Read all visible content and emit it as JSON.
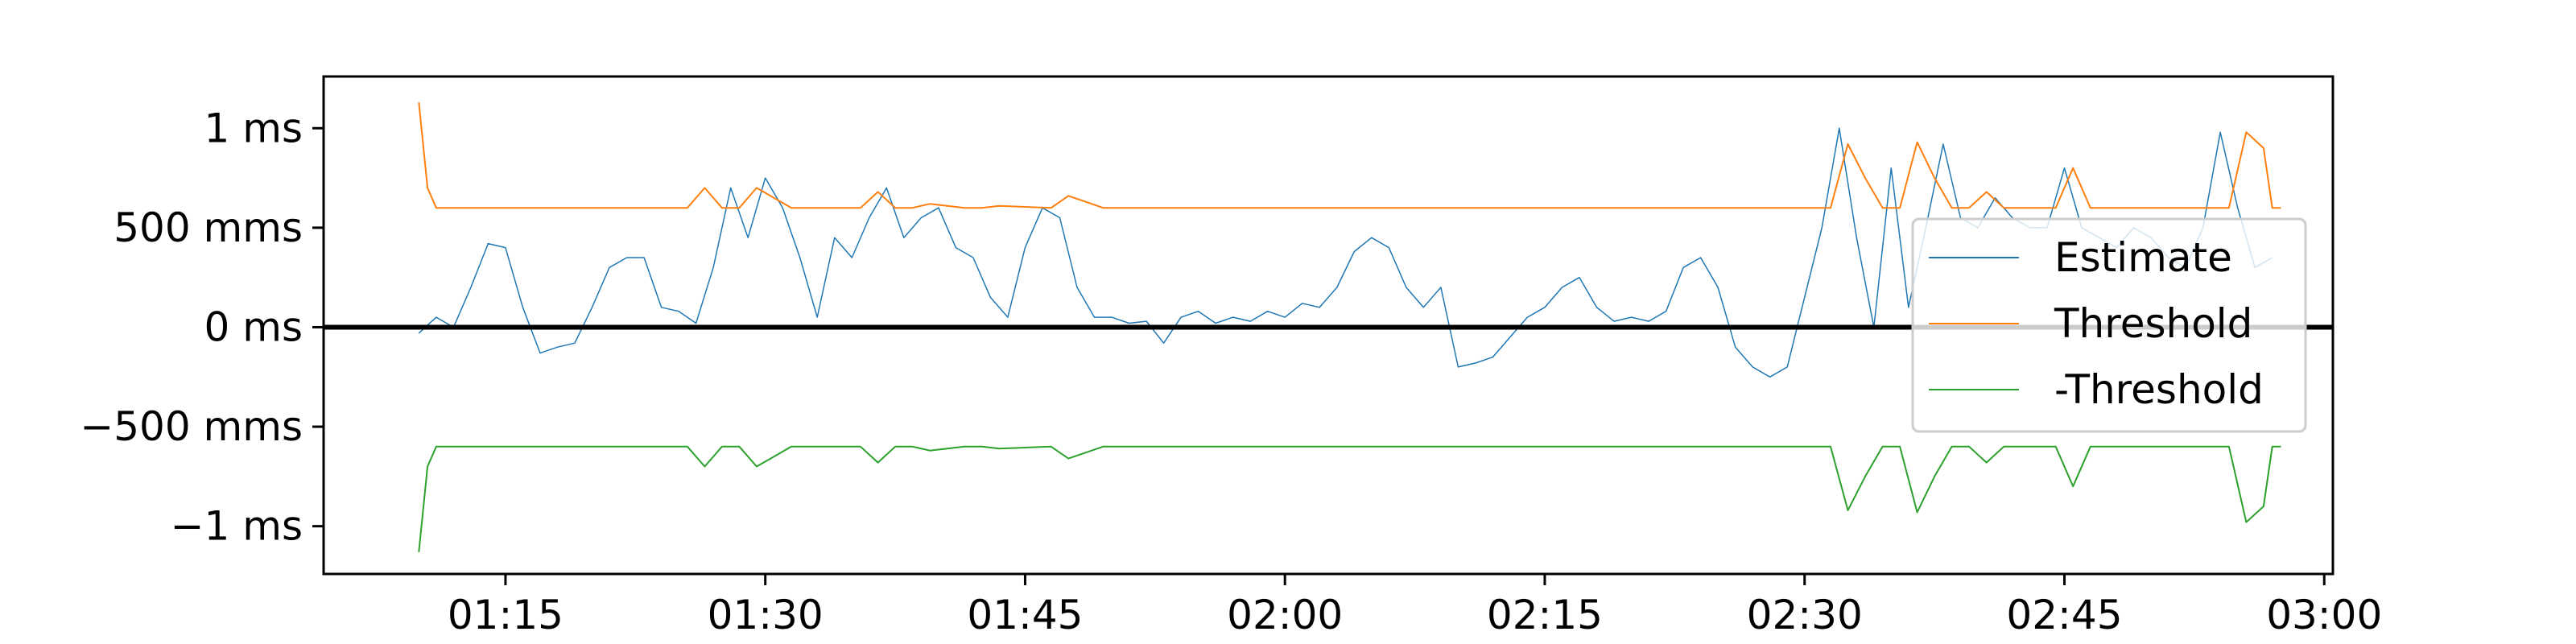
{
  "chart_data": {
    "type": "line",
    "title": "",
    "xlabel": "",
    "ylabel": "",
    "xlim": [
      "01:04:30",
      "03:00:30"
    ],
    "ylim": [
      -1.24,
      1.26
    ],
    "y_unit": "ms",
    "grid": false,
    "legend_position": "right",
    "zero_line": true,
    "x_ticks": [
      {
        "value": "01:15",
        "label": "01:15"
      },
      {
        "value": "01:30",
        "label": "01:30"
      },
      {
        "value": "01:45",
        "label": "01:45"
      },
      {
        "value": "02:00",
        "label": "02:00"
      },
      {
        "value": "02:15",
        "label": "02:15"
      },
      {
        "value": "02:30",
        "label": "02:30"
      },
      {
        "value": "02:45",
        "label": "02:45"
      },
      {
        "value": "03:00",
        "label": "03:00"
      }
    ],
    "y_ticks": [
      {
        "value": 1.0,
        "label": "1 ms"
      },
      {
        "value": 0.5,
        "label": "500 mms"
      },
      {
        "value": 0.0,
        "label": "0 ms"
      },
      {
        "value": -0.5,
        "label": "−500 mms"
      },
      {
        "value": -1.0,
        "label": "−1 ms"
      }
    ],
    "series": [
      {
        "name": "Estimate",
        "color": "#1f77b4",
        "x": [
          "01:10",
          "01:11",
          "01:12",
          "01:13",
          "01:14",
          "01:15",
          "01:16",
          "01:17",
          "01:18",
          "01:19",
          "01:20",
          "01:21",
          "01:22",
          "01:23",
          "01:24",
          "01:25",
          "01:26",
          "01:27",
          "01:28",
          "01:29",
          "01:30",
          "01:31",
          "01:32",
          "01:33",
          "01:34",
          "01:35",
          "01:36",
          "01:37",
          "01:38",
          "01:39",
          "01:40",
          "01:41",
          "01:42",
          "01:43",
          "01:44",
          "01:45",
          "01:46",
          "01:47",
          "01:48",
          "01:49",
          "01:50",
          "01:51",
          "01:52",
          "01:53",
          "01:54",
          "01:55",
          "01:56",
          "01:57",
          "01:58",
          "01:59",
          "02:00",
          "02:01",
          "02:02",
          "02:03",
          "02:04",
          "02:05",
          "02:06",
          "02:07",
          "02:08",
          "02:09",
          "02:10",
          "02:11",
          "02:12",
          "02:13",
          "02:14",
          "02:15",
          "02:16",
          "02:17",
          "02:18",
          "02:19",
          "02:20",
          "02:21",
          "02:22",
          "02:23",
          "02:24",
          "02:25",
          "02:26",
          "02:27",
          "02:28",
          "02:29",
          "02:30",
          "02:31",
          "02:32",
          "02:33",
          "02:34",
          "02:35",
          "02:36",
          "02:37",
          "02:38",
          "02:39",
          "02:40",
          "02:41",
          "02:42",
          "02:43",
          "02:44",
          "02:45",
          "02:46",
          "02:47",
          "02:48",
          "02:49",
          "02:50",
          "02:51",
          "02:52",
          "02:53",
          "02:54",
          "02:55",
          "02:56",
          "02:57"
        ],
        "values": [
          -0.03,
          0.05,
          0.0,
          0.2,
          0.42,
          0.4,
          0.1,
          -0.13,
          -0.1,
          -0.08,
          0.1,
          0.3,
          0.35,
          0.35,
          0.1,
          0.08,
          0.02,
          0.3,
          0.7,
          0.45,
          0.75,
          0.6,
          0.35,
          0.05,
          0.45,
          0.35,
          0.55,
          0.7,
          0.45,
          0.55,
          0.6,
          0.4,
          0.35,
          0.15,
          0.05,
          0.4,
          0.6,
          0.55,
          0.2,
          0.05,
          0.05,
          0.02,
          0.03,
          -0.08,
          0.05,
          0.08,
          0.02,
          0.05,
          0.03,
          0.08,
          0.05,
          0.12,
          0.1,
          0.2,
          0.38,
          0.45,
          0.4,
          0.2,
          0.1,
          0.2,
          -0.2,
          -0.18,
          -0.15,
          -0.05,
          0.05,
          0.1,
          0.2,
          0.25,
          0.1,
          0.03,
          0.05,
          0.03,
          0.08,
          0.3,
          0.35,
          0.2,
          -0.1,
          -0.2,
          -0.25,
          -0.2,
          0.15,
          0.5,
          1.0,
          0.45,
          0.0,
          0.8,
          0.1,
          0.5,
          0.92,
          0.55,
          0.5,
          0.65,
          0.55,
          0.5,
          0.5,
          0.8,
          0.5,
          0.45,
          0.4,
          0.5,
          0.45,
          0.35,
          0.3,
          0.5,
          0.98,
          0.6,
          0.3,
          0.35
        ],
        "line_width": 1.5
      },
      {
        "name": "Threshold",
        "color": "#ff7f0e",
        "x": [
          "01:10",
          "01:10:30",
          "01:11",
          "01:25:30",
          "01:26:30",
          "01:27:30",
          "01:28:30",
          "01:29:30",
          "01:30:30",
          "01:31:30",
          "01:35:30",
          "01:36:30",
          "01:37:30",
          "01:38:30",
          "01:39:30",
          "01:41:30",
          "01:42:30",
          "01:43:30",
          "01:46:30",
          "01:47:30",
          "01:48:30",
          "01:49:30",
          "02:31:30",
          "02:32:30",
          "02:33:30",
          "02:34:30",
          "02:35:30",
          "02:36:30",
          "02:37:30",
          "02:38:30",
          "02:39:30",
          "02:40:30",
          "02:41:30",
          "02:43:30",
          "02:44:30",
          "02:45:30",
          "02:46:30",
          "02:54:30",
          "02:55:30",
          "02:56:30",
          "02:57:00",
          "02:57:30"
        ],
        "values": [
          1.13,
          0.7,
          0.6,
          0.6,
          0.7,
          0.6,
          0.6,
          0.7,
          0.65,
          0.6,
          0.6,
          0.68,
          0.6,
          0.6,
          0.62,
          0.6,
          0.6,
          0.61,
          0.6,
          0.66,
          0.63,
          0.6,
          0.6,
          0.92,
          0.75,
          0.6,
          0.6,
          0.93,
          0.75,
          0.6,
          0.6,
          0.68,
          0.6,
          0.6,
          0.6,
          0.8,
          0.6,
          0.6,
          0.98,
          0.9,
          0.6,
          0.6
        ],
        "line_width": 2
      },
      {
        "name": "-Threshold",
        "color": "#2ca02c",
        "x": [
          "01:10",
          "01:10:30",
          "01:11",
          "01:25:30",
          "01:26:30",
          "01:27:30",
          "01:28:30",
          "01:29:30",
          "01:30:30",
          "01:31:30",
          "01:35:30",
          "01:36:30",
          "01:37:30",
          "01:38:30",
          "01:39:30",
          "01:41:30",
          "01:42:30",
          "01:43:30",
          "01:46:30",
          "01:47:30",
          "01:48:30",
          "01:49:30",
          "02:31:30",
          "02:32:30",
          "02:33:30",
          "02:34:30",
          "02:35:30",
          "02:36:30",
          "02:37:30",
          "02:38:30",
          "02:39:30",
          "02:40:30",
          "02:41:30",
          "02:43:30",
          "02:44:30",
          "02:45:30",
          "02:46:30",
          "02:54:30",
          "02:55:30",
          "02:56:30",
          "02:57:00",
          "02:57:30"
        ],
        "values": [
          -1.13,
          -0.7,
          -0.6,
          -0.6,
          -0.7,
          -0.6,
          -0.6,
          -0.7,
          -0.65,
          -0.6,
          -0.6,
          -0.68,
          -0.6,
          -0.6,
          -0.62,
          -0.6,
          -0.6,
          -0.61,
          -0.6,
          -0.66,
          -0.63,
          -0.6,
          -0.6,
          -0.92,
          -0.75,
          -0.6,
          -0.6,
          -0.93,
          -0.75,
          -0.6,
          -0.6,
          -0.68,
          -0.6,
          -0.6,
          -0.6,
          -0.8,
          -0.6,
          -0.6,
          -0.98,
          -0.9,
          -0.6,
          -0.6
        ],
        "line_width": 2
      }
    ]
  }
}
